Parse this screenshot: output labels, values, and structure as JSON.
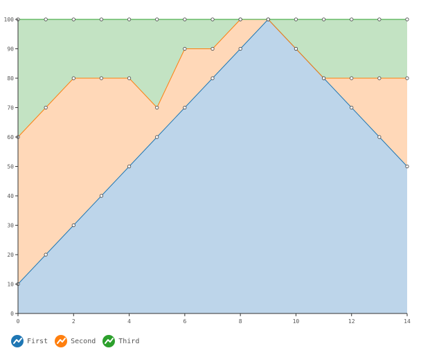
{
  "chart_data": {
    "type": "area",
    "stacked": true,
    "x": [
      0,
      1,
      2,
      3,
      4,
      5,
      6,
      7,
      8,
      9,
      10,
      11,
      12,
      13,
      14
    ],
    "x_ticks": [
      0,
      2,
      4,
      6,
      8,
      10,
      12,
      14
    ],
    "y_ticks": [
      0,
      10,
      20,
      30,
      40,
      50,
      60,
      70,
      80,
      90,
      100
    ],
    "xlim": [
      0,
      14
    ],
    "ylim": [
      0,
      100
    ],
    "grid": false,
    "legend_position": "bottom-left",
    "series": [
      {
        "name": "First",
        "color": "#1f77b4",
        "fill": "#bdd5ea",
        "values": [
          10,
          20,
          30,
          40,
          50,
          60,
          70,
          80,
          90,
          100,
          90,
          80,
          70,
          60,
          50
        ]
      },
      {
        "name": "Second",
        "color": "#ff7f0e",
        "fill": "#ffd8b8",
        "values": [
          50,
          50,
          50,
          40,
          30,
          10,
          20,
          10,
          10,
          0,
          0,
          0,
          10,
          20,
          30
        ]
      },
      {
        "name": "Third",
        "color": "#2ca02c",
        "fill": "#c3e3c3",
        "values": [
          40,
          30,
          20,
          20,
          20,
          30,
          10,
          10,
          0,
          0,
          10,
          20,
          20,
          20,
          20
        ]
      }
    ]
  },
  "legend": {
    "first_label": "First",
    "second_label": "Second",
    "third_label": "Third"
  }
}
